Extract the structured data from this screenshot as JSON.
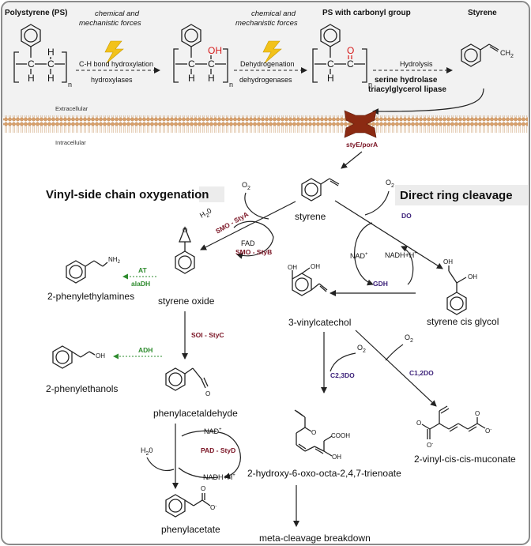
{
  "top": {
    "polystyrene_label": "Polystyrene (PS)",
    "ps_carbonyl_label": "PS with carbonyl group",
    "styrene_label": "Styrene",
    "forces_1a": "chemical and",
    "forces_1b": "mechanistic forces",
    "forces_2a": "chemical and",
    "forces_2b": "mechanistic forces",
    "step1": "C-H bond hydroxylation",
    "step1_enzyme": "hydroxylases",
    "step2": "Dehydrogenation",
    "step2_enzyme": "dehydrogenases",
    "step3": "Hydrolysis",
    "step3_enzyme_a": "serine hydrolase",
    "step3_enzyme_b": "triacylglycerol lipase",
    "sub_n": "n",
    "oh": "OH",
    "o": "O",
    "h": "H",
    "c": "C"
  },
  "membrane": {
    "extracellular": "Extracellular",
    "intracellular": "Intracellular",
    "transporter": "styE/porA"
  },
  "sections": {
    "left_title": "Vinyl-side chain oxygenation",
    "right_title": "Direct ring cleavage"
  },
  "compounds": {
    "styrene": "styrene",
    "styrene_oxide": "styrene oxide",
    "phenylethylamines": "2-phenylethylamines",
    "phenylethanols": "2-phenylethanols",
    "phenylacetaldehyde": "phenylacetaldehyde",
    "phenylacetate": "phenylacetate",
    "vinylcatechol": "3-vinylcatechol",
    "cis_glycol": "styrene cis glycol",
    "hydroxy_oxo": "2-hydroxy-6-oxo-octa-2,4,7-trienoate",
    "muconate": "2-vinyl-cis-cis-muconate",
    "meta_cleavage": "meta-cleavage breakdown"
  },
  "enzymes": {
    "smo_styA": "SMO - StyA",
    "smo_styB": "SMO - StyB",
    "soi_styC": "SOI - StyC",
    "pad_styD": "PAD - StyD",
    "at": "AT",
    "aladh": "alaDH",
    "adh": "ADH",
    "do": "DO",
    "gdh": "GDH",
    "c23do": "C2,3DO",
    "c12do": "C1,2DO"
  },
  "cofactors": {
    "o2": "O",
    "o2_sub": "2",
    "h2o_a": "H",
    "h2o_sub": "2",
    "h2o_b": "0",
    "fad": "FAD",
    "nad": "NAD",
    "nadh": "NADH+H",
    "plus": "+",
    "nh2": "NH",
    "oh": "OH",
    "cooh": "COOH",
    "minus": "-"
  },
  "colors": {
    "enzyme_red": "#7a1424",
    "enzyme_purple": "#3a1f78",
    "enzyme_green": "#2e8b2e",
    "carbonyl_red": "#d61a1a",
    "membrane": "#d9a06a",
    "transporter": "#8b2a12"
  }
}
